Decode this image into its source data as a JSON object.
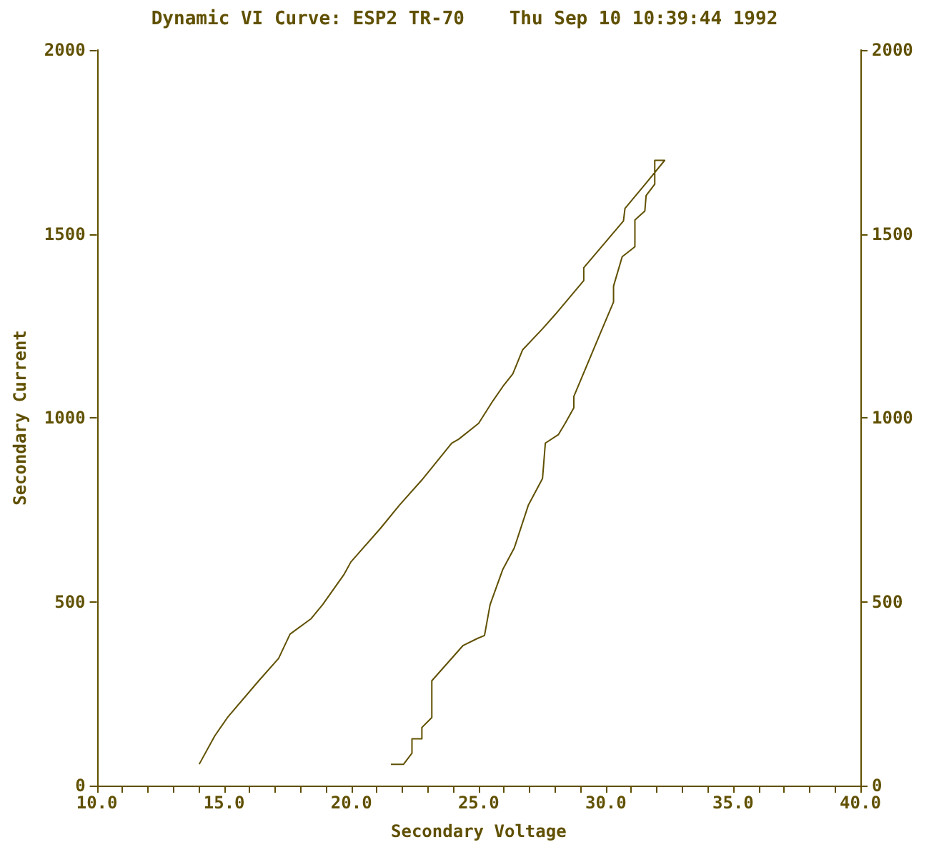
{
  "chart_data": {
    "type": "line",
    "title": "Dynamic VI Curve: ESP2 TR-70    Thu Sep 10 10:39:44 1992",
    "xlabel": "Secondary Voltage",
    "ylabel": "Secondary Current",
    "color": "#605000",
    "marker": "none",
    "line_style": "solid",
    "grid": false,
    "x": [
      21.55,
      22.05,
      22.38,
      22.38,
      22.77,
      22.77,
      23.16,
      23.16,
      24.39,
      24.95,
      25.23,
      25.45,
      25.95,
      26.4,
      26.95,
      27.51,
      27.62,
      28.13,
      28.4,
      28.74,
      28.74,
      29.74,
      30.3,
      30.3,
      30.64,
      31.14,
      31.14,
      31.53,
      31.58,
      31.92,
      31.92,
      32.31,
      31.58,
      30.75,
      30.69,
      29.13,
      29.13,
      28.01,
      27.51,
      26.73,
      26.34,
      25.95,
      25.56,
      25.0,
      24.22,
      23.94,
      22.77,
      21.88,
      21.15,
      19.98,
      19.7,
      18.87,
      18.42,
      17.59,
      17.14,
      16.36,
      15.13,
      14.63,
      14.02
    ],
    "values": [
      58,
      58,
      88,
      127,
      127,
      158,
      185,
      285,
      381,
      400,
      408,
      492,
      588,
      646,
      762,
      835,
      931,
      954,
      985,
      1027,
      1058,
      1223,
      1315,
      1358,
      1438,
      1465,
      1538,
      1562,
      1604,
      1635,
      1700,
      1700,
      1638,
      1569,
      1535,
      1408,
      1373,
      1281,
      1242,
      1185,
      1119,
      1085,
      1046,
      985,
      942,
      931,
      831,
      762,
      700,
      608,
      573,
      492,
      454,
      412,
      346,
      285,
      185,
      135,
      58
    ],
    "xlim": [
      10,
      40
    ],
    "xticks": [
      {
        "value": 10,
        "label": "10.0"
      },
      {
        "value": 11,
        "label": null
      },
      {
        "value": 12,
        "label": null
      },
      {
        "value": 13,
        "label": null
      },
      {
        "value": 14,
        "label": null
      },
      {
        "value": 15,
        "label": "15.0"
      },
      {
        "value": 16,
        "label": null
      },
      {
        "value": 17,
        "label": null
      },
      {
        "value": 18,
        "label": null
      },
      {
        "value": 19,
        "label": null
      },
      {
        "value": 20,
        "label": "20.0"
      },
      {
        "value": 21,
        "label": null
      },
      {
        "value": 22,
        "label": null
      },
      {
        "value": 23,
        "label": null
      },
      {
        "value": 24,
        "label": null
      },
      {
        "value": 25,
        "label": "25.0"
      },
      {
        "value": 26,
        "label": null
      },
      {
        "value": 27,
        "label": null
      },
      {
        "value": 28,
        "label": null
      },
      {
        "value": 29,
        "label": null
      },
      {
        "value": 30,
        "label": "30.0"
      },
      {
        "value": 31,
        "label": null
      },
      {
        "value": 32,
        "label": null
      },
      {
        "value": 33,
        "label": null
      },
      {
        "value": 34,
        "label": null
      },
      {
        "value": 35,
        "label": "35.0"
      },
      {
        "value": 36,
        "label": null
      },
      {
        "value": 37,
        "label": null
      },
      {
        "value": 38,
        "label": null
      },
      {
        "value": 39,
        "label": null
      },
      {
        "value": 40,
        "label": "40.0"
      }
    ],
    "ylim": [
      0,
      2000
    ],
    "yticks": [
      0,
      500,
      1000,
      1500,
      2000
    ],
    "y2lim": [
      0,
      2000
    ],
    "y2ticks": [
      0,
      500,
      1000,
      1500,
      2000
    ]
  }
}
